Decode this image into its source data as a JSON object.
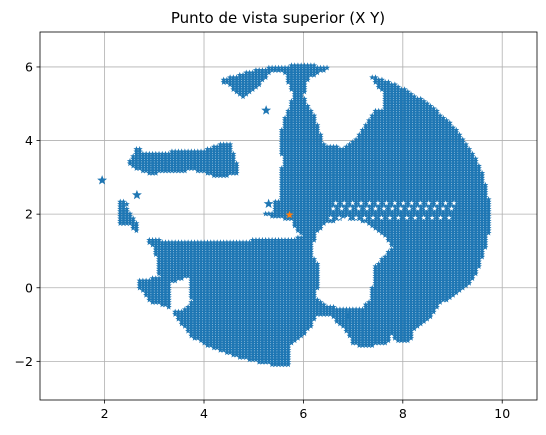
{
  "chart_data": {
    "type": "scatter",
    "title": "Punto de vista superior (X Y)",
    "xlabel": "",
    "ylabel": "",
    "xlim": [
      0.7,
      10.7
    ],
    "ylim": [
      -3.05,
      6.95
    ],
    "xticks": [
      2,
      4,
      6,
      8,
      10
    ],
    "yticks": [
      -2,
      0,
      2,
      4,
      6
    ],
    "xtick_labels": [
      "2",
      "4",
      "6",
      "8",
      "10"
    ],
    "ytick_labels": [
      "−2",
      "0",
      "2",
      "4",
      "6"
    ],
    "grid": true,
    "colors": {
      "primary": "#1f77b4",
      "secondary": "#ff7f0e"
    },
    "series": [
      {
        "marker": "star",
        "color": "#1f77b4",
        "region": {
          "ellipse": {
            "cx": 6.0,
            "cy": 1.95,
            "rx": 3.75,
            "ry": 4.1
          },
          "holes": [
            [
              [
                2.0,
                0.0
              ],
              [
                3.1,
                0.3
              ],
              [
                3.0,
                1.1
              ],
              [
                2.5,
                1.7
              ],
              [
                2.1,
                1.7
              ]
            ],
            [
              [
                2.0,
                3.6
              ],
              [
                2.9,
                3.1
              ],
              [
                3.8,
                3.2
              ],
              [
                4.3,
                3.0
              ],
              [
                4.8,
                3.15
              ],
              [
                5.2,
                3.0
              ],
              [
                5.4,
                2.4
              ],
              [
                5.4,
                2.05
              ],
              [
                4.6,
                1.9
              ],
              [
                3.7,
                1.95
              ],
              [
                3.0,
                2.1
              ],
              [
                2.0,
                2.5
              ]
            ],
            [
              [
                3.5,
                5.9
              ],
              [
                3.7,
                5.3
              ],
              [
                3.35,
                5.0
              ],
              [
                2.8,
                4.6
              ],
              [
                2.6,
                4.2
              ],
              [
                2.75,
                3.65
              ],
              [
                3.3,
                3.7
              ],
              [
                4.0,
                3.75
              ],
              [
                4.4,
                3.95
              ],
              [
                4.8,
                3.9
              ],
              [
                5.05,
                3.8
              ],
              [
                5.0,
                4.4
              ],
              [
                4.9,
                4.95
              ],
              [
                4.5,
                5.5
              ],
              [
                4.0,
                5.9
              ]
            ],
            [
              [
                4.4,
                4.4
              ],
              [
                4.6,
                4.8
              ],
              [
                4.8,
                5.2
              ],
              [
                5.15,
                5.55
              ],
              [
                5.35,
                5.85
              ],
              [
                5.6,
                5.9
              ],
              [
                5.8,
                5.2
              ],
              [
                5.6,
                4.55
              ],
              [
                5.5,
                3.9
              ],
              [
                5.6,
                3.4
              ],
              [
                5.5,
                3.0
              ],
              [
                5.55,
                2.4
              ],
              [
                5.2,
                2.35
              ],
              [
                4.9,
                2.65
              ],
              [
                4.7,
                3.2
              ],
              [
                4.55,
                3.8
              ]
            ],
            [
              [
                6.1,
                5.7
              ],
              [
                7.05,
                6.3
              ],
              [
                7.6,
                5.3
              ],
              [
                7.6,
                4.85
              ],
              [
                7.45,
                4.85
              ],
              [
                7.3,
                4.55
              ],
              [
                7.05,
                4.05
              ],
              [
                6.8,
                3.8
              ],
              [
                6.4,
                3.9
              ],
              [
                6.35,
                4.2
              ],
              [
                6.25,
                4.6
              ],
              [
                6.0,
                5.2
              ]
            ],
            [
              [
                1.5,
                1.0
              ],
              [
                2.7,
                1.15
              ],
              [
                2.7,
                1.7
              ],
              [
                2.4,
                2.25
              ],
              [
                2.9,
                2.45
              ],
              [
                3.9,
                2.0
              ],
              [
                5.05,
                2.0
              ],
              [
                5.75,
                1.85
              ],
              [
                5.9,
                1.5
              ],
              [
                6.0,
                1.4
              ],
              [
                5.8,
                1.35
              ],
              [
                5.0,
                1.3
              ],
              [
                4.25,
                1.25
              ],
              [
                3.0,
                1.3
              ],
              [
                2.8,
                1.3
              ],
              [
                1.5,
                0.9
              ]
            ],
            [
              [
                4.6,
                -1.9
              ],
              [
                3.95,
                -1.7
              ],
              [
                3.3,
                -0.55
              ],
              [
                3.0,
                -0.4
              ],
              [
                2.55,
                -0.6
              ],
              [
                1.9,
                -0.6
              ],
              [
                1.9,
                -2.5
              ],
              [
                4.6,
                -2.5
              ]
            ],
            [
              [
                3.3,
                -0.6
              ],
              [
                3.35,
                0.15
              ],
              [
                3.7,
                0.3
              ],
              [
                3.75,
                -0.35
              ],
              [
                3.6,
                -0.6
              ]
            ],
            [
              [
                8.2,
                -1.2
              ],
              [
                8.5,
                -0.9
              ],
              [
                8.75,
                -0.45
              ],
              [
                9.2,
                -0.05
              ],
              [
                9.55,
                0.35
              ],
              [
                9.9,
                -0.3
              ],
              [
                9.9,
                -2.0
              ],
              [
                8.2,
                -2.0
              ]
            ],
            [
              [
                6.45,
                1.75
              ],
              [
                6.25,
                1.45
              ],
              [
                6.15,
                1.0
              ],
              [
                6.3,
                0.6
              ],
              [
                6.3,
                0.1
              ],
              [
                6.25,
                -0.3
              ],
              [
                6.45,
                -0.45
              ],
              [
                6.7,
                -0.55
              ],
              [
                7.2,
                -0.55
              ],
              [
                7.35,
                -0.3
              ],
              [
                7.4,
                0.2
              ],
              [
                7.45,
                0.6
              ],
              [
                7.8,
                1.1
              ],
              [
                7.7,
                1.3
              ],
              [
                7.55,
                1.5
              ],
              [
                7.2,
                1.8
              ],
              [
                6.85,
                1.9
              ]
            ],
            [
              [
                5.75,
                -1.55
              ],
              [
                5.95,
                -1.35
              ],
              [
                6.15,
                -1.05
              ],
              [
                6.25,
                -0.75
              ],
              [
                6.55,
                -0.75
              ],
              [
                6.9,
                -1.25
              ],
              [
                7.0,
                -1.55
              ],
              [
                7.3,
                -1.6
              ],
              [
                7.7,
                -1.5
              ],
              [
                7.75,
                -1.25
              ],
              [
                7.9,
                -1.45
              ],
              [
                8.3,
                -1.6
              ],
              [
                8.3,
                -2.4
              ],
              [
                5.75,
                -2.4
              ]
            ],
            [
              [
                2.45,
                2.7
              ],
              [
                2.6,
                2.6
              ],
              [
                2.7,
                2.4
              ],
              [
                2.8,
                2.3
              ],
              [
                2.9,
                2.35
              ],
              [
                2.85,
                2.55
              ],
              [
                2.7,
                2.75
              ]
            ]
          ]
        },
        "outliers": [
          [
            1.95,
            2.92
          ],
          [
            2.65,
            2.52
          ],
          [
            5.25,
            4.82
          ],
          [
            6.9,
            -0.8
          ],
          [
            5.3,
            2.28
          ]
        ]
      },
      {
        "marker": "star",
        "color": "#ff7f0e",
        "points": [
          [
            5.72,
            1.98
          ]
        ]
      }
    ]
  }
}
